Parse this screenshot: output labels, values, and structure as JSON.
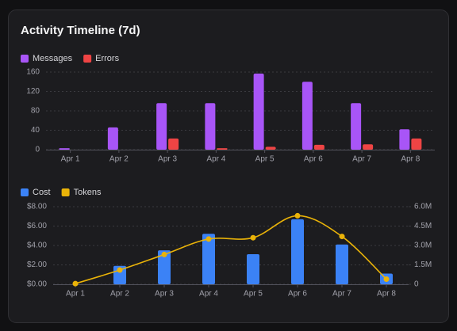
{
  "title": "Activity Timeline (7d)",
  "chart_data": [
    {
      "type": "bar",
      "categories": [
        "Apr 1",
        "Apr 2",
        "Apr 3",
        "Apr 4",
        "Apr 5",
        "Apr 6",
        "Apr 7",
        "Apr 8"
      ],
      "series": [
        {
          "name": "Messages",
          "color": "#a855f7",
          "values": [
            3,
            46,
            96,
            96,
            157,
            140,
            96,
            42
          ]
        },
        {
          "name": "Errors",
          "color": "#ef4444",
          "values": [
            0,
            0,
            23,
            3,
            6,
            10,
            11,
            23
          ]
        }
      ],
      "ylim": [
        0,
        160
      ],
      "yticks": [
        0,
        40,
        80,
        120,
        160
      ],
      "grid": true
    },
    {
      "type": "combo",
      "categories": [
        "Apr 1",
        "Apr 2",
        "Apr 3",
        "Apr 4",
        "Apr 5",
        "Apr 6",
        "Apr 7",
        "Apr 8"
      ],
      "series": [
        {
          "name": "Cost",
          "color": "#3b82f6",
          "kind": "bar",
          "values": [
            0,
            1.9,
            3.5,
            5.2,
            3.1,
            6.7,
            4.1,
            1.1
          ]
        },
        {
          "name": "Tokens",
          "color": "#eab308",
          "kind": "line",
          "axis": "y2",
          "values": [
            50000,
            1100000,
            2300000,
            3500000,
            3600000,
            5300000,
            3700000,
            400000
          ]
        }
      ],
      "ylim": [
        0,
        8
      ],
      "yticks": [
        {
          "value": 0,
          "label": "$0.00"
        },
        {
          "value": 2,
          "label": "$2.00"
        },
        {
          "value": 4,
          "label": "$4.00"
        },
        {
          "value": 6,
          "label": "$6.00"
        },
        {
          "value": 8,
          "label": "$8.00"
        }
      ],
      "y2lim": [
        0,
        6000000
      ],
      "y2ticks": [
        0,
        {
          "value": 1500000,
          "label": "1.5M"
        },
        {
          "value": 3000000,
          "label": "3.0M"
        },
        {
          "value": 4500000,
          "label": "4.5M"
        },
        {
          "value": 6000000,
          "label": "6.0M"
        }
      ],
      "grid": true
    }
  ]
}
